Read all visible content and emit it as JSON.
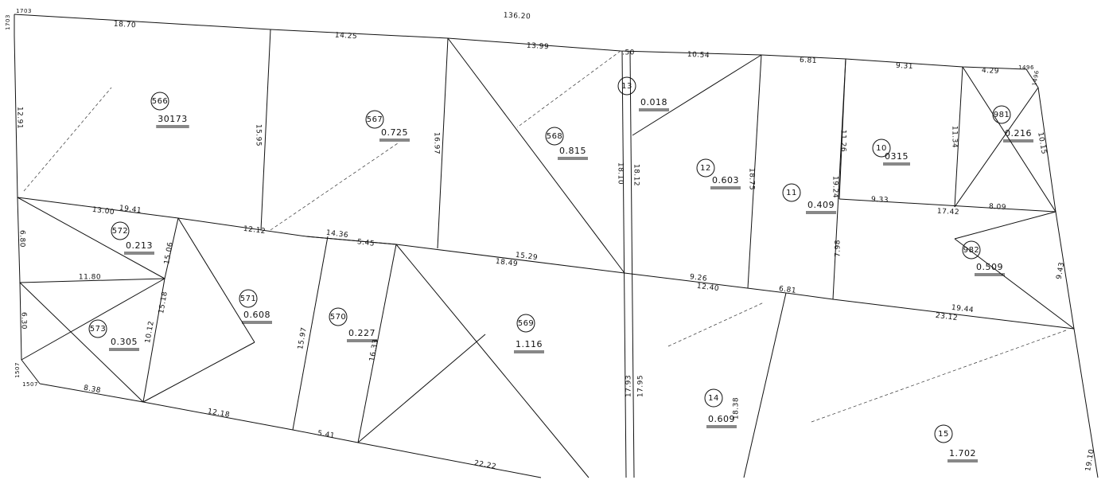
{
  "header": {
    "total": "136.20"
  },
  "parcels": [
    {
      "number": "566",
      "area": "30173"
    },
    {
      "number": "567",
      "area": "0.725"
    },
    {
      "number": "568",
      "area": "0.815"
    },
    {
      "number": "13",
      "area": "0.018"
    },
    {
      "number": "12",
      "area": "0.603"
    },
    {
      "number": "11",
      "area": "0.409"
    },
    {
      "number": "10",
      "area": "0315"
    },
    {
      "number": "981",
      "area": "0.216"
    },
    {
      "number": "982",
      "area": "0.509"
    },
    {
      "number": "572",
      "area": "0.213"
    },
    {
      "number": "573",
      "area": "0.305"
    },
    {
      "number": "571",
      "area": "0.608"
    },
    {
      "number": "570",
      "area": "0.227"
    },
    {
      "number": "569",
      "area": "1.116"
    },
    {
      "number": "14",
      "area": "0.609"
    },
    {
      "number": "15",
      "area": "1.702"
    }
  ],
  "dimensions": [
    "18.70",
    "14.25",
    "13.99",
    ".50",
    "10.54",
    "6.81",
    "9.31",
    "4.29",
    "12.91",
    "15.95",
    "16.97",
    "18.10",
    "18.12",
    "18.75",
    "11.26",
    "11.34",
    "10.15",
    "19.24",
    "9.33",
    "17.42",
    "8.09",
    "19.41",
    "13.00",
    "12.12",
    "14.36",
    "5.45",
    "15.29",
    "18.49",
    "9.26",
    "12.40",
    "6.81",
    "23.12",
    "19.44",
    "9.43",
    "7.98",
    "6.80",
    "11.80",
    "15.06",
    "6.30",
    "10.12",
    "15.18",
    "15.97",
    "16.33",
    "17.93",
    "17.95",
    "18.38",
    "8.38",
    "12.18",
    "5.41",
    "22.22",
    "19.10"
  ],
  "corner_marks": [
    "1703",
    "1703",
    "1496",
    "1496",
    "1507",
    "1507"
  ]
}
